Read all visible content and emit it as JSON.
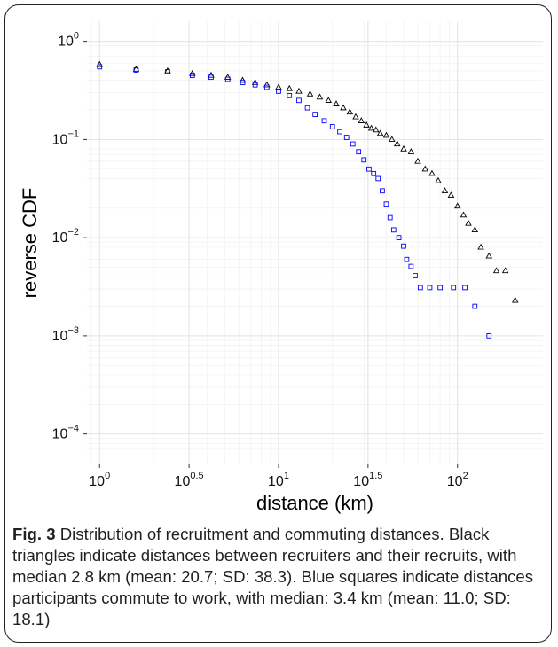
{
  "chart_data": {
    "type": "scatter",
    "title": "",
    "xlabel": "distance (km)",
    "ylabel": "reverse CDF",
    "x_scale": "log10",
    "y_scale": "log10",
    "xlim": [
      0.85,
      300
    ],
    "ylim": [
      5e-05,
      1.6
    ],
    "grid": true,
    "x_ticks": [
      {
        "base": "10",
        "exp": "0",
        "value": 1
      },
      {
        "base": "10",
        "exp": "0.5",
        "value": 3.162
      },
      {
        "base": "10",
        "exp": "1",
        "value": 10
      },
      {
        "base": "10",
        "exp": "1.5",
        "value": 31.62
      },
      {
        "base": "10",
        "exp": "2",
        "value": 100
      }
    ],
    "y_ticks": [
      {
        "base": "10",
        "exp": "0",
        "value": 1
      },
      {
        "base": "10",
        "exp": "−1",
        "value": 0.1
      },
      {
        "base": "10",
        "exp": "−2",
        "value": 0.01
      },
      {
        "base": "10",
        "exp": "−3",
        "value": 0.001
      },
      {
        "base": "10",
        "exp": "−4",
        "value": 0.0001
      }
    ],
    "series": [
      {
        "marker": "triangle",
        "color": "#000000",
        "points": [
          [
            1.0,
            0.58
          ],
          [
            1.6,
            0.52
          ],
          [
            2.4,
            0.5
          ],
          [
            3.3,
            0.47
          ],
          [
            4.2,
            0.45
          ],
          [
            5.2,
            0.43
          ],
          [
            6.3,
            0.4
          ],
          [
            7.4,
            0.38
          ],
          [
            8.6,
            0.36
          ],
          [
            10,
            0.34
          ],
          [
            11.5,
            0.33
          ],
          [
            13,
            0.31
          ],
          [
            15,
            0.29
          ],
          [
            17,
            0.27
          ],
          [
            19,
            0.25
          ],
          [
            21,
            0.23
          ],
          [
            23,
            0.21
          ],
          [
            25,
            0.19
          ],
          [
            27,
            0.17
          ],
          [
            29,
            0.155
          ],
          [
            31,
            0.14
          ],
          [
            33,
            0.13
          ],
          [
            35,
            0.125
          ],
          [
            37,
            0.115
          ],
          [
            40,
            0.11
          ],
          [
            43,
            0.1
          ],
          [
            46,
            0.09
          ],
          [
            50,
            0.08
          ],
          [
            55,
            0.075
          ],
          [
            60,
            0.06
          ],
          [
            66,
            0.05
          ],
          [
            72,
            0.045
          ],
          [
            78,
            0.038
          ],
          [
            85,
            0.03
          ],
          [
            92,
            0.027
          ],
          [
            100,
            0.021
          ],
          [
            108,
            0.017
          ],
          [
            115,
            0.014
          ],
          [
            125,
            0.012
          ],
          [
            135,
            0.008
          ],
          [
            150,
            0.0065
          ],
          [
            165,
            0.0046
          ],
          [
            185,
            0.0046
          ],
          [
            210,
            0.0023
          ]
        ]
      },
      {
        "marker": "square",
        "color": "#0000ff",
        "points": [
          [
            1.0,
            0.55
          ],
          [
            1.6,
            0.51
          ],
          [
            2.4,
            0.49
          ],
          [
            3.3,
            0.45
          ],
          [
            4.2,
            0.43
          ],
          [
            5.2,
            0.41
          ],
          [
            6.3,
            0.38
          ],
          [
            7.4,
            0.36
          ],
          [
            8.6,
            0.34
          ],
          [
            10,
            0.31
          ],
          [
            11.5,
            0.28
          ],
          [
            13,
            0.25
          ],
          [
            14.5,
            0.21
          ],
          [
            16,
            0.18
          ],
          [
            18,
            0.155
          ],
          [
            20,
            0.135
          ],
          [
            22,
            0.12
          ],
          [
            24,
            0.105
          ],
          [
            26,
            0.09
          ],
          [
            28,
            0.075
          ],
          [
            30,
            0.062
          ],
          [
            32,
            0.05
          ],
          [
            34,
            0.045
          ],
          [
            36,
            0.04
          ],
          [
            38,
            0.03
          ],
          [
            40,
            0.022
          ],
          [
            42,
            0.016
          ],
          [
            44,
            0.012
          ],
          [
            47,
            0.01
          ],
          [
            50,
            0.0082
          ],
          [
            52,
            0.006
          ],
          [
            55,
            0.0051
          ],
          [
            58,
            0.0041
          ],
          [
            62,
            0.0031
          ],
          [
            70,
            0.0031
          ],
          [
            80,
            0.0031
          ],
          [
            95,
            0.0031
          ],
          [
            110,
            0.0031
          ],
          [
            125,
            0.002
          ],
          [
            150,
            0.001
          ]
        ]
      }
    ]
  },
  "caption": {
    "label": "Fig. 3",
    "text": "Distribution of recruitment and commuting distances. Black triangles indicate distances between recruiters and their recruits, with median 2.8 km (mean: 20.7; SD: 38.3). Blue squares indicate distances participants commute to work, with median: 3.4 km (mean: 11.0; SD: 18.1)"
  }
}
